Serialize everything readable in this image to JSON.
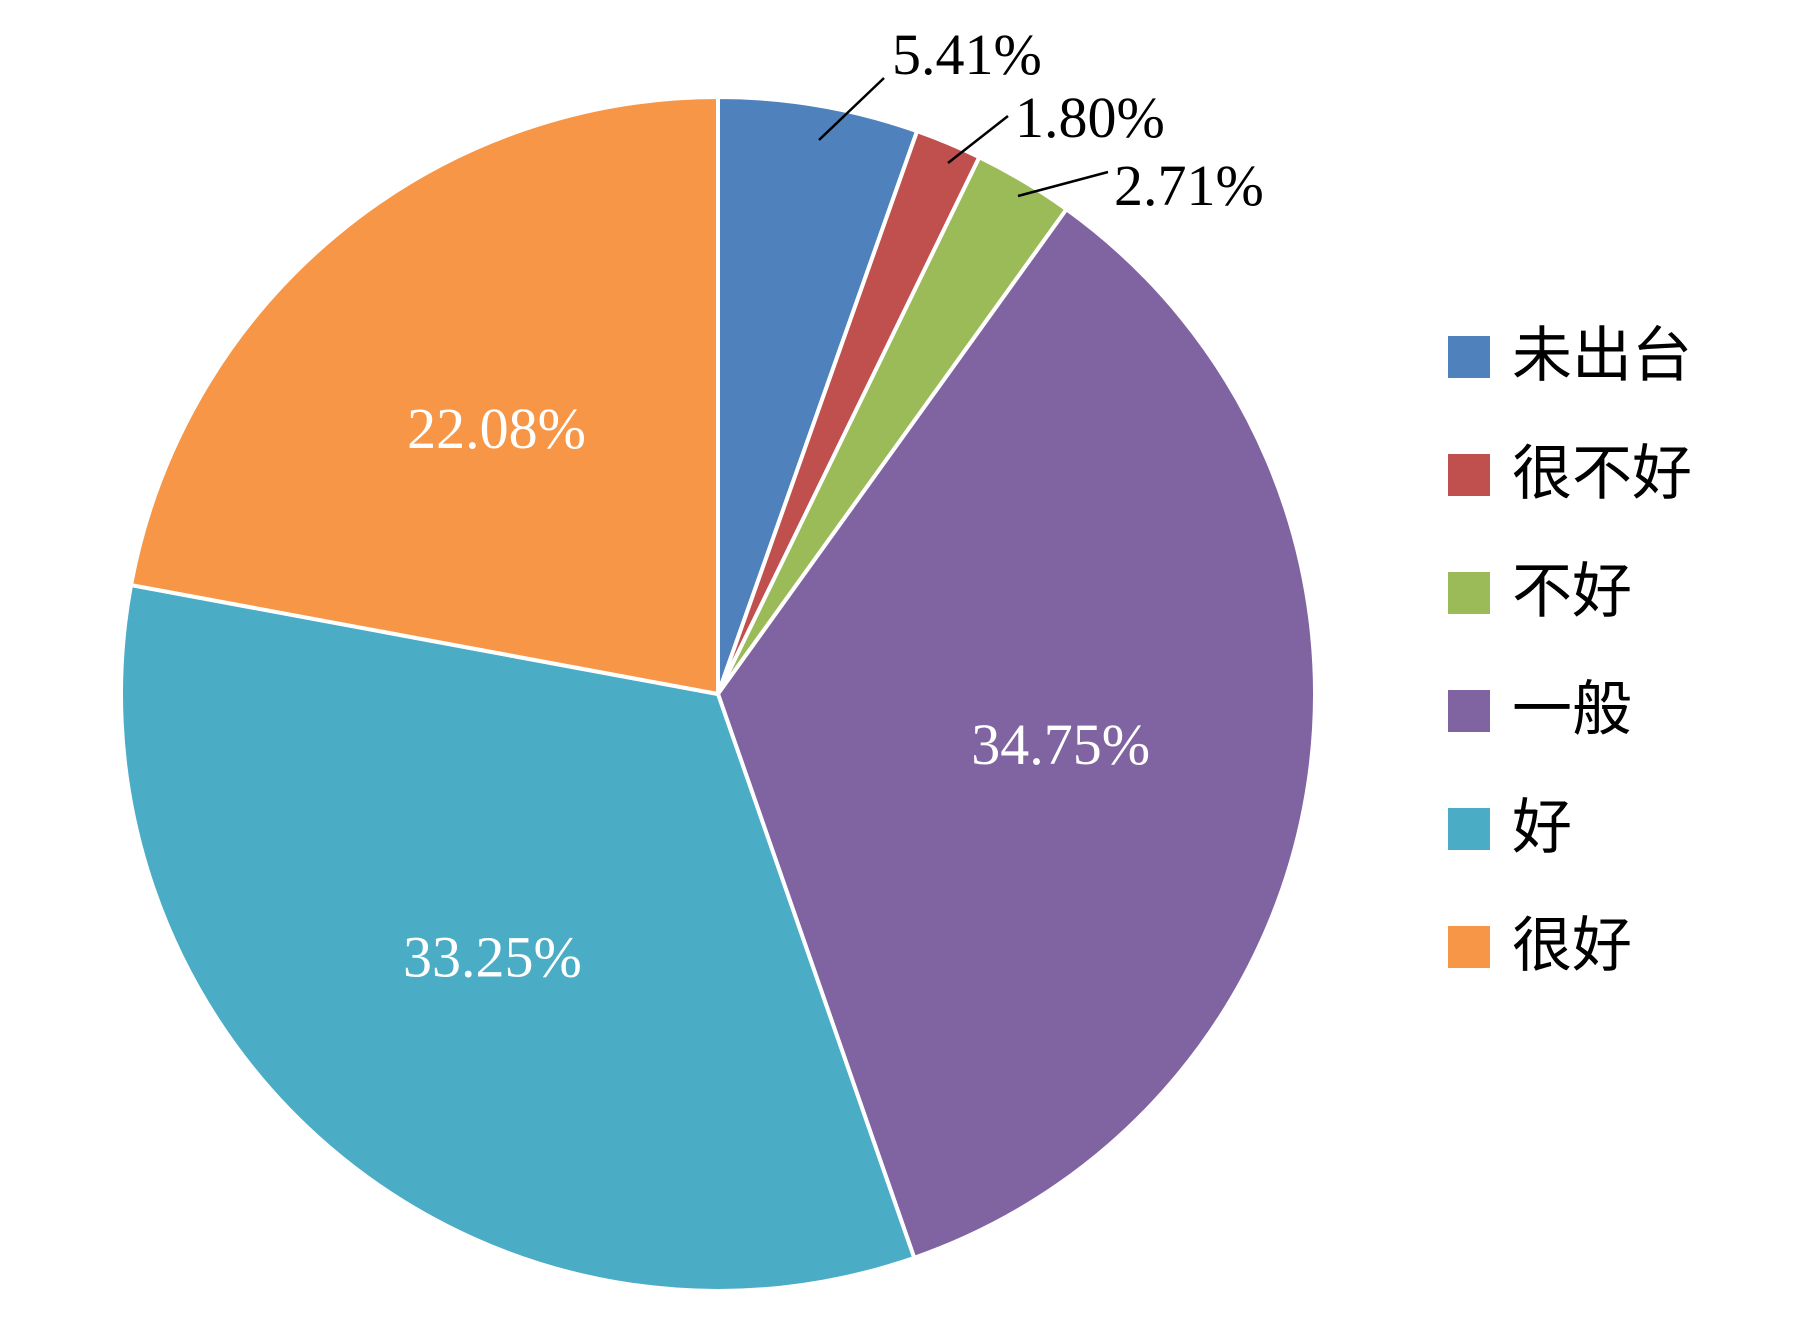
{
  "chart_data": {
    "type": "pie",
    "title": "",
    "legend_position": "right",
    "series": [
      {
        "values": [
          {
            "label": "未出台",
            "value": 5.41,
            "display": "5.41%",
            "color": "#4F81BD",
            "label_position": "outside"
          },
          {
            "label": "很不好",
            "value": 1.8,
            "display": "1.80%",
            "color": "#C0504D",
            "label_position": "outside"
          },
          {
            "label": "不好",
            "value": 2.71,
            "display": "2.71%",
            "color": "#9BBB59",
            "label_position": "outside"
          },
          {
            "label": "一般",
            "value": 34.75,
            "display": "34.75%",
            "color": "#8064A2",
            "label_position": "inside"
          },
          {
            "label": "好",
            "value": 33.25,
            "display": "33.25%",
            "color": "#4BACC6",
            "label_position": "inside"
          },
          {
            "label": "很好",
            "value": 22.08,
            "display": "22.08%",
            "color": "#F79646",
            "label_position": "inside"
          }
        ]
      }
    ]
  }
}
